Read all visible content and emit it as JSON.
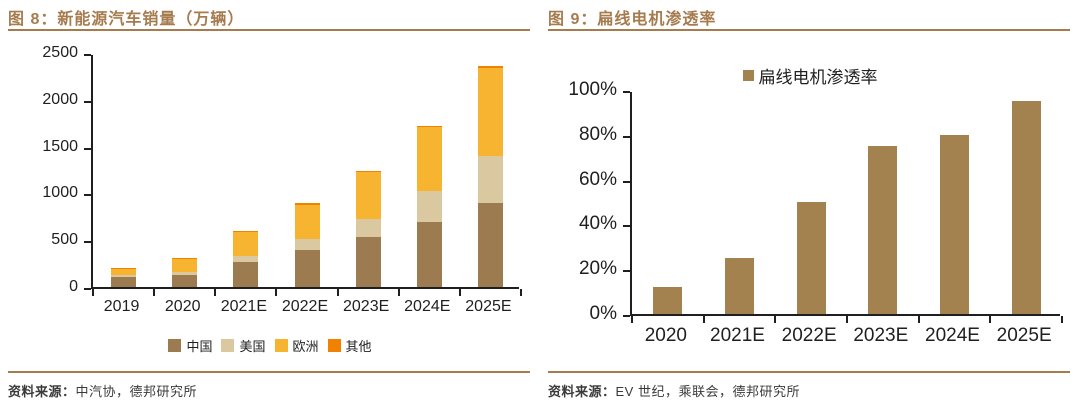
{
  "figures": {
    "left": {
      "title": "图 8：新能源汽车销量（万辆）",
      "source_label": "资料来源：",
      "source_body": "中汽协，德邦研究所"
    },
    "right": {
      "title": "图 9：扁线电机渗透率",
      "source_label": "资料来源：",
      "source_body": "EV 世纪，乘联会，德邦研究所"
    }
  },
  "colors": {
    "accent_brown": "#A67C4F",
    "axis": "#1f1f1f",
    "china_brown": "#9C7B50",
    "us_tan": "#D9C8A0",
    "europe_yellow": "#F7B431",
    "other_orange": "#F08200",
    "penetration_brown": "#A3824F"
  },
  "chart_data": [
    {
      "type": "bar",
      "stacked": true,
      "title": "新能源汽车销量（万辆）",
      "categories": [
        "2019",
        "2020",
        "2021E",
        "2022E",
        "2023E",
        "2024E",
        "2025E"
      ],
      "series": [
        {
          "name": "中国",
          "color": "#9C7B50",
          "values": [
            110,
            130,
            270,
            400,
            530,
            695,
            900
          ]
        },
        {
          "name": "美国",
          "color": "#D9C8A0",
          "values": [
            20,
            30,
            60,
            115,
            200,
            330,
            500
          ]
        },
        {
          "name": "欧洲",
          "color": "#F7B431",
          "values": [
            65,
            145,
            255,
            365,
            495,
            680,
            940
          ]
        },
        {
          "name": "其他",
          "color": "#F08200",
          "values": [
            5,
            5,
            15,
            15,
            15,
            20,
            20
          ]
        }
      ],
      "totals": [
        200,
        310,
        600,
        895,
        1240,
        1725,
        2360
      ],
      "xlabel": "",
      "ylabel": "",
      "ylim": [
        0,
        2500
      ],
      "ytick_values": [
        0,
        500,
        1000,
        1500,
        2000,
        2500
      ],
      "ytick_labels": [
        "0",
        "500",
        "1000",
        "1500",
        "2000",
        "2500"
      ],
      "grid": false,
      "legend_position": "bottom"
    },
    {
      "type": "bar",
      "stacked": false,
      "title": "扁线电机渗透率",
      "categories": [
        "2020",
        "2021E",
        "2022E",
        "2023E",
        "2024E",
        "2025E"
      ],
      "series": [
        {
          "name": "扁线电机渗透率",
          "color": "#A3824F",
          "values": [
            12,
            25,
            50,
            75,
            80,
            95
          ]
        }
      ],
      "xlabel": "",
      "ylabel": "",
      "ylim": [
        0,
        100
      ],
      "ytick_values": [
        0,
        20,
        40,
        60,
        80,
        100
      ],
      "ytick_labels": [
        "0%",
        "20%",
        "40%",
        "60%",
        "80%",
        "100%"
      ],
      "grid": false,
      "legend_position": "top"
    }
  ]
}
